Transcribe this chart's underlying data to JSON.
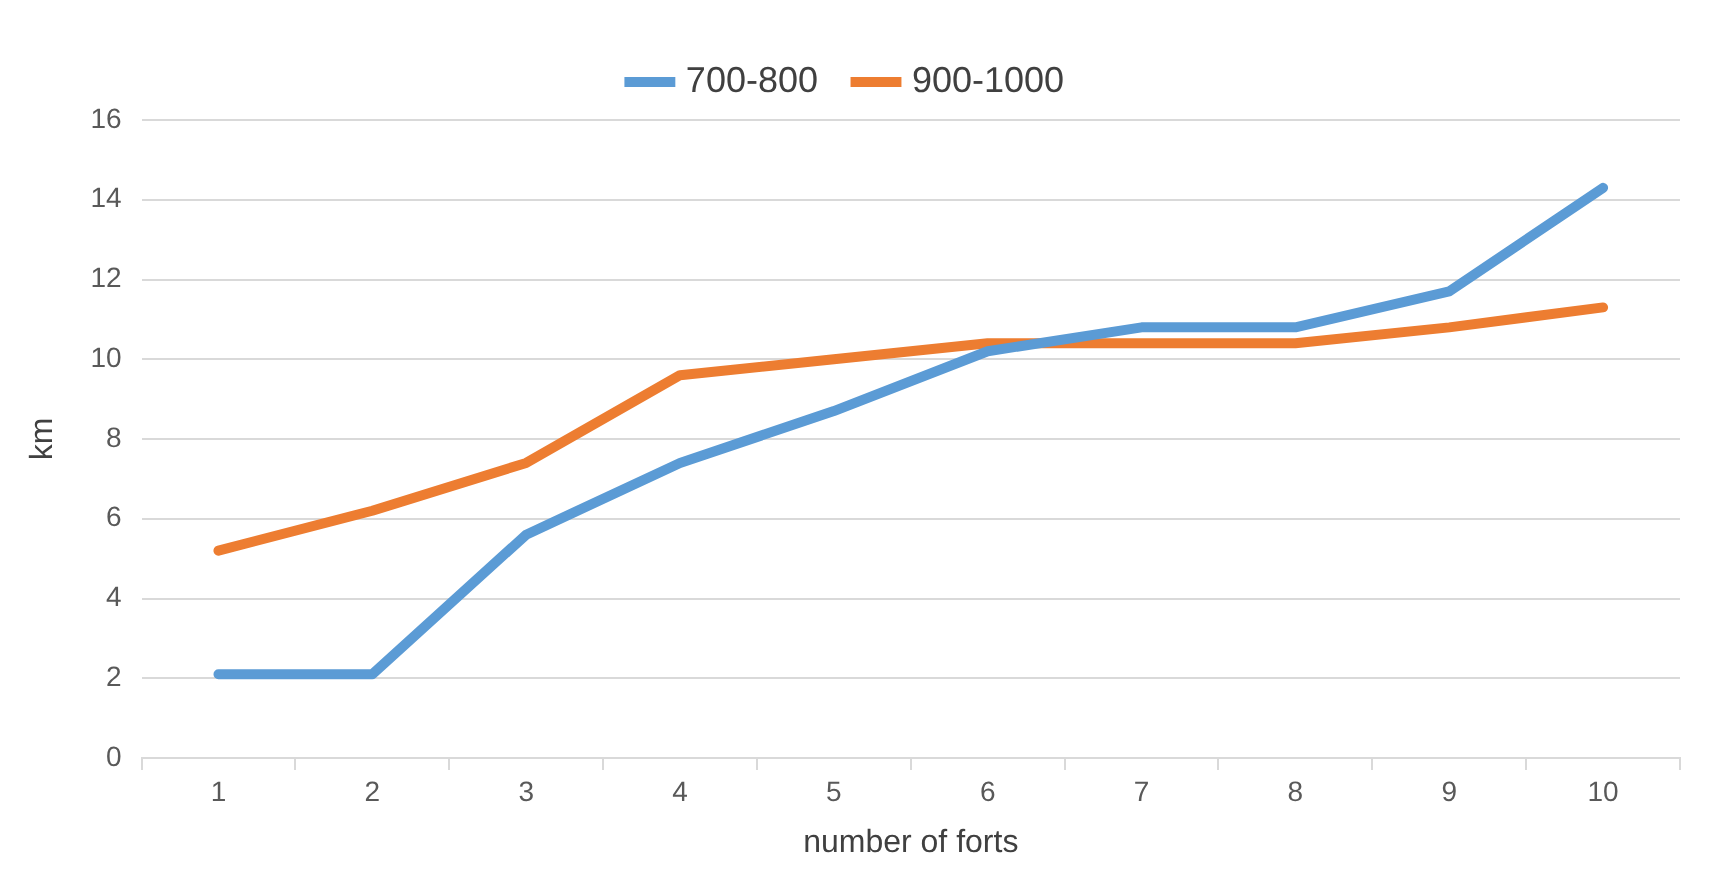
{
  "chart_data": {
    "type": "line",
    "xlabel": "number of forts",
    "ylabel": "km",
    "categories": [
      "1",
      "2",
      "3",
      "4",
      "5",
      "6",
      "7",
      "8",
      "9",
      "10"
    ],
    "series": [
      {
        "name": "700-800",
        "color": "#5b9bd5",
        "values": [
          2.1,
          2.1,
          5.6,
          7.4,
          8.7,
          10.2,
          10.8,
          10.8,
          11.7,
          14.3
        ]
      },
      {
        "name": "900-1000",
        "color": "#ed7d31",
        "values": [
          5.2,
          6.2,
          7.4,
          9.6,
          10.0,
          10.4,
          10.4,
          10.4,
          10.8,
          11.3
        ]
      }
    ],
    "ylim": [
      0,
      16
    ],
    "yticks": [
      0,
      2,
      4,
      6,
      8,
      10,
      12,
      14,
      16
    ],
    "grid": "y",
    "legend": "top",
    "marker": "none",
    "line_style": "solid"
  }
}
